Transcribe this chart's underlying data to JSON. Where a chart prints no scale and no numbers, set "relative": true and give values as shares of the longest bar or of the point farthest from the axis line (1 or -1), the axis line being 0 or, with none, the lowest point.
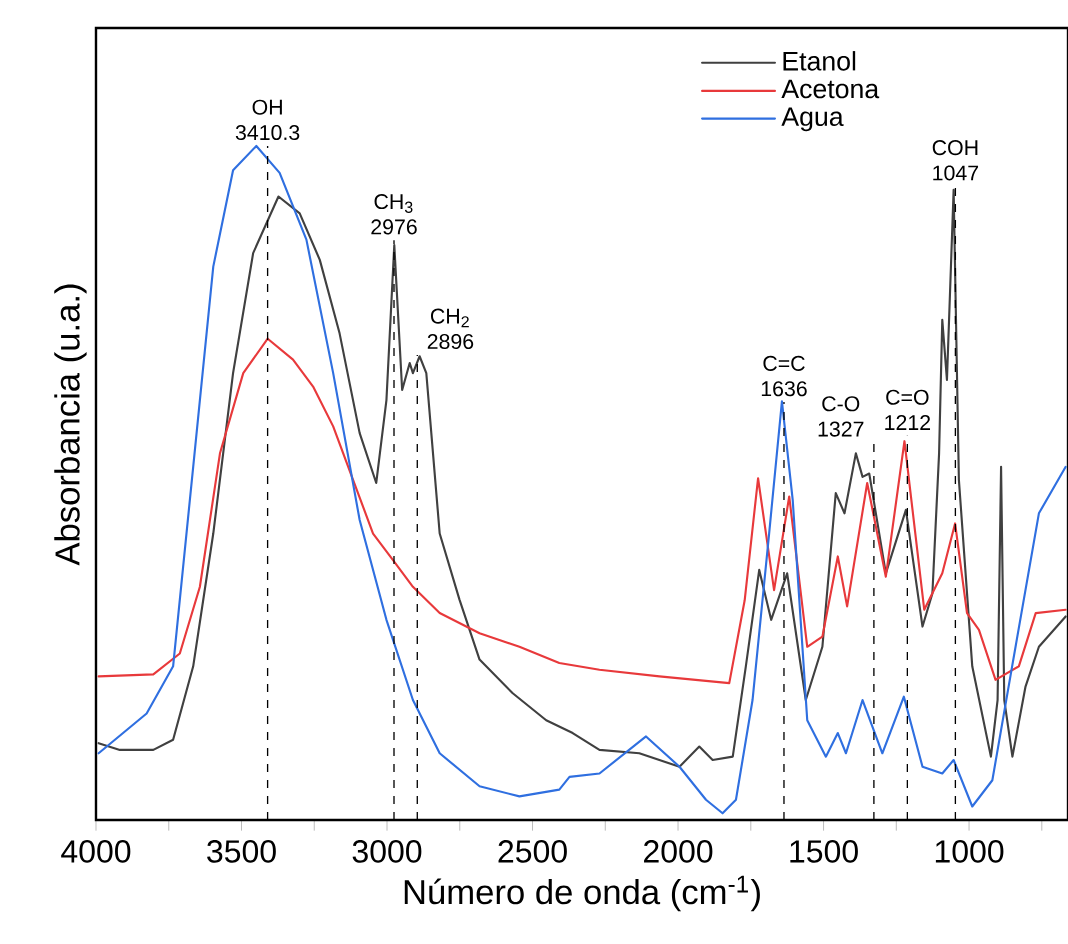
{
  "chart_data": {
    "type": "line",
    "relative": true,
    "xlabel": "Número de onda (cm$^{-1}$)",
    "ylabel": "Absorbancia (u.a.)",
    "xlim": [
      4000,
      660
    ],
    "xticks": [
      4000,
      {
        "value": 3750,
        "label": null
      },
      3500,
      {
        "value": 3250,
        "label": null
      },
      3000,
      {
        "value": 2750,
        "label": null
      },
      2500,
      {
        "value": 2250,
        "label": null
      },
      2000,
      {
        "value": 1750,
        "label": null
      },
      1500,
      {
        "value": 1250,
        "label": null
      },
      1000,
      {
        "value": 750,
        "label": null
      }
    ],
    "legend": "top right",
    "line_style": "solid",
    "marker": "none",
    "series": [
      {
        "name": "Etanol",
        "color": "#404040",
        "x": [
          3991,
          3918,
          3803,
          3735,
          3666,
          3597,
          3529,
          3460,
          3373,
          3300,
          3231,
          3163,
          3094,
          3037,
          3002,
          2975,
          2948,
          2922,
          2911,
          2888,
          2865,
          2819,
          2751,
          2682,
          2568,
          2453,
          2362,
          2270,
          2133,
          1995,
          1927,
          1881,
          1812,
          1767,
          1721,
          1680,
          1625,
          1561,
          1504,
          1458,
          1428,
          1389,
          1366,
          1343,
          1286,
          1217,
          1160,
          1126,
          1103,
          1092,
          1076,
          1053,
          1035,
          989,
          925,
          902,
          890,
          879,
          851,
          806,
          760,
          668
        ],
        "values": [
          0.114,
          0.104,
          0.104,
          0.119,
          0.228,
          0.425,
          0.663,
          0.841,
          0.925,
          0.9,
          0.831,
          0.722,
          0.574,
          0.5,
          0.623,
          0.853,
          0.638,
          0.678,
          0.663,
          0.688,
          0.663,
          0.425,
          0.327,
          0.238,
          0.188,
          0.148,
          0.129,
          0.104,
          0.099,
          0.079,
          0.109,
          0.089,
          0.094,
          0.228,
          0.371,
          0.297,
          0.366,
          0.178,
          0.257,
          0.485,
          0.455,
          0.544,
          0.509,
          0.514,
          0.366,
          0.46,
          0.287,
          0.336,
          0.544,
          0.742,
          0.653,
          0.935,
          0.505,
          0.228,
          0.094,
          0.178,
          0.524,
          0.178,
          0.094,
          0.198,
          0.257,
          0.302
        ]
      },
      {
        "name": "Acetona",
        "color": "#e8393b",
        "x": [
          3991,
          3803,
          3712,
          3643,
          3574,
          3494,
          3410,
          3323,
          3254,
          3185,
          3117,
          3048,
          2980,
          2911,
          2819,
          2682,
          2545,
          2408,
          2270,
          2064,
          1824,
          1771,
          1725,
          1670,
          1618,
          1556,
          1504,
          1451,
          1419,
          1350,
          1286,
          1222,
          1154,
          1092,
          1048,
          1007,
          966,
          909,
          829,
          771,
          668
        ],
        "values": [
          0.213,
          0.216,
          0.247,
          0.346,
          0.544,
          0.663,
          0.714,
          0.683,
          0.643,
          0.584,
          0.505,
          0.425,
          0.386,
          0.346,
          0.307,
          0.277,
          0.257,
          0.233,
          0.223,
          0.213,
          0.203,
          0.326,
          0.507,
          0.341,
          0.48,
          0.257,
          0.272,
          0.391,
          0.317,
          0.5,
          0.361,
          0.562,
          0.312,
          0.366,
          0.44,
          0.307,
          0.282,
          0.208,
          0.228,
          0.307,
          0.312
        ]
      },
      {
        "name": "Agua",
        "color": "#2f6fe0",
        "x": [
          3991,
          3826,
          3735,
          3666,
          3597,
          3529,
          3449,
          3369,
          3277,
          3185,
          3094,
          3002,
          2911,
          2819,
          2682,
          2545,
          2408,
          2373,
          2270,
          2110,
          1995,
          1904,
          1847,
          1801,
          1744,
          1687,
          1643,
          1606,
          1556,
          1492,
          1451,
          1423,
          1366,
          1298,
          1224,
          1160,
          1092,
          1053,
          989,
          920,
          852,
          760,
          668
        ],
        "values": [
          0.099,
          0.158,
          0.228,
          0.524,
          0.821,
          0.964,
          1,
          0.96,
          0.861,
          0.663,
          0.445,
          0.297,
          0.178,
          0.099,
          0.05,
          0.035,
          0.045,
          0.064,
          0.069,
          0.124,
          0.079,
          0.03,
          0.01,
          0.03,
          0.178,
          0.425,
          0.621,
          0.475,
          0.148,
          0.094,
          0.129,
          0.099,
          0.178,
          0.099,
          0.183,
          0.079,
          0.069,
          0.089,
          0.02,
          0.059,
          0.228,
          0.455,
          0.524
        ]
      }
    ],
    "ref_lines": [
      {
        "axis": "x",
        "value": 3410.3,
        "line_style": "dashed"
      },
      {
        "axis": "x",
        "value": 2976,
        "line_style": "dashed"
      },
      {
        "axis": "x",
        "value": 2896,
        "line_style": "dashed"
      },
      {
        "axis": "x",
        "value": 1636,
        "line_style": "dashed"
      },
      {
        "axis": "x",
        "value": 1327,
        "line_style": "dashed"
      },
      {
        "axis": "x",
        "value": 1212,
        "line_style": "dashed"
      },
      {
        "axis": "x",
        "value": 1047,
        "line_style": "dashed"
      }
    ],
    "annotations": [
      {
        "text": "OH 3410.3",
        "x": 3410.3,
        "y": 1.0
      },
      {
        "text": "CH$_{3}$ 2976",
        "x": 2976,
        "y": 0.86
      },
      {
        "text": "CH$_{2}$ 2896",
        "x": 2896,
        "y": 0.69
      },
      {
        "text": "C=C 1636",
        "x": 1636,
        "y": 0.62
      },
      {
        "text": "C-O 1327",
        "x": 1327,
        "y": 0.56
      },
      {
        "text": "C=O 1212",
        "x": 1212,
        "y": 0.57
      },
      {
        "text": "COH 1047",
        "x": 1047,
        "y": 0.94
      }
    ]
  }
}
